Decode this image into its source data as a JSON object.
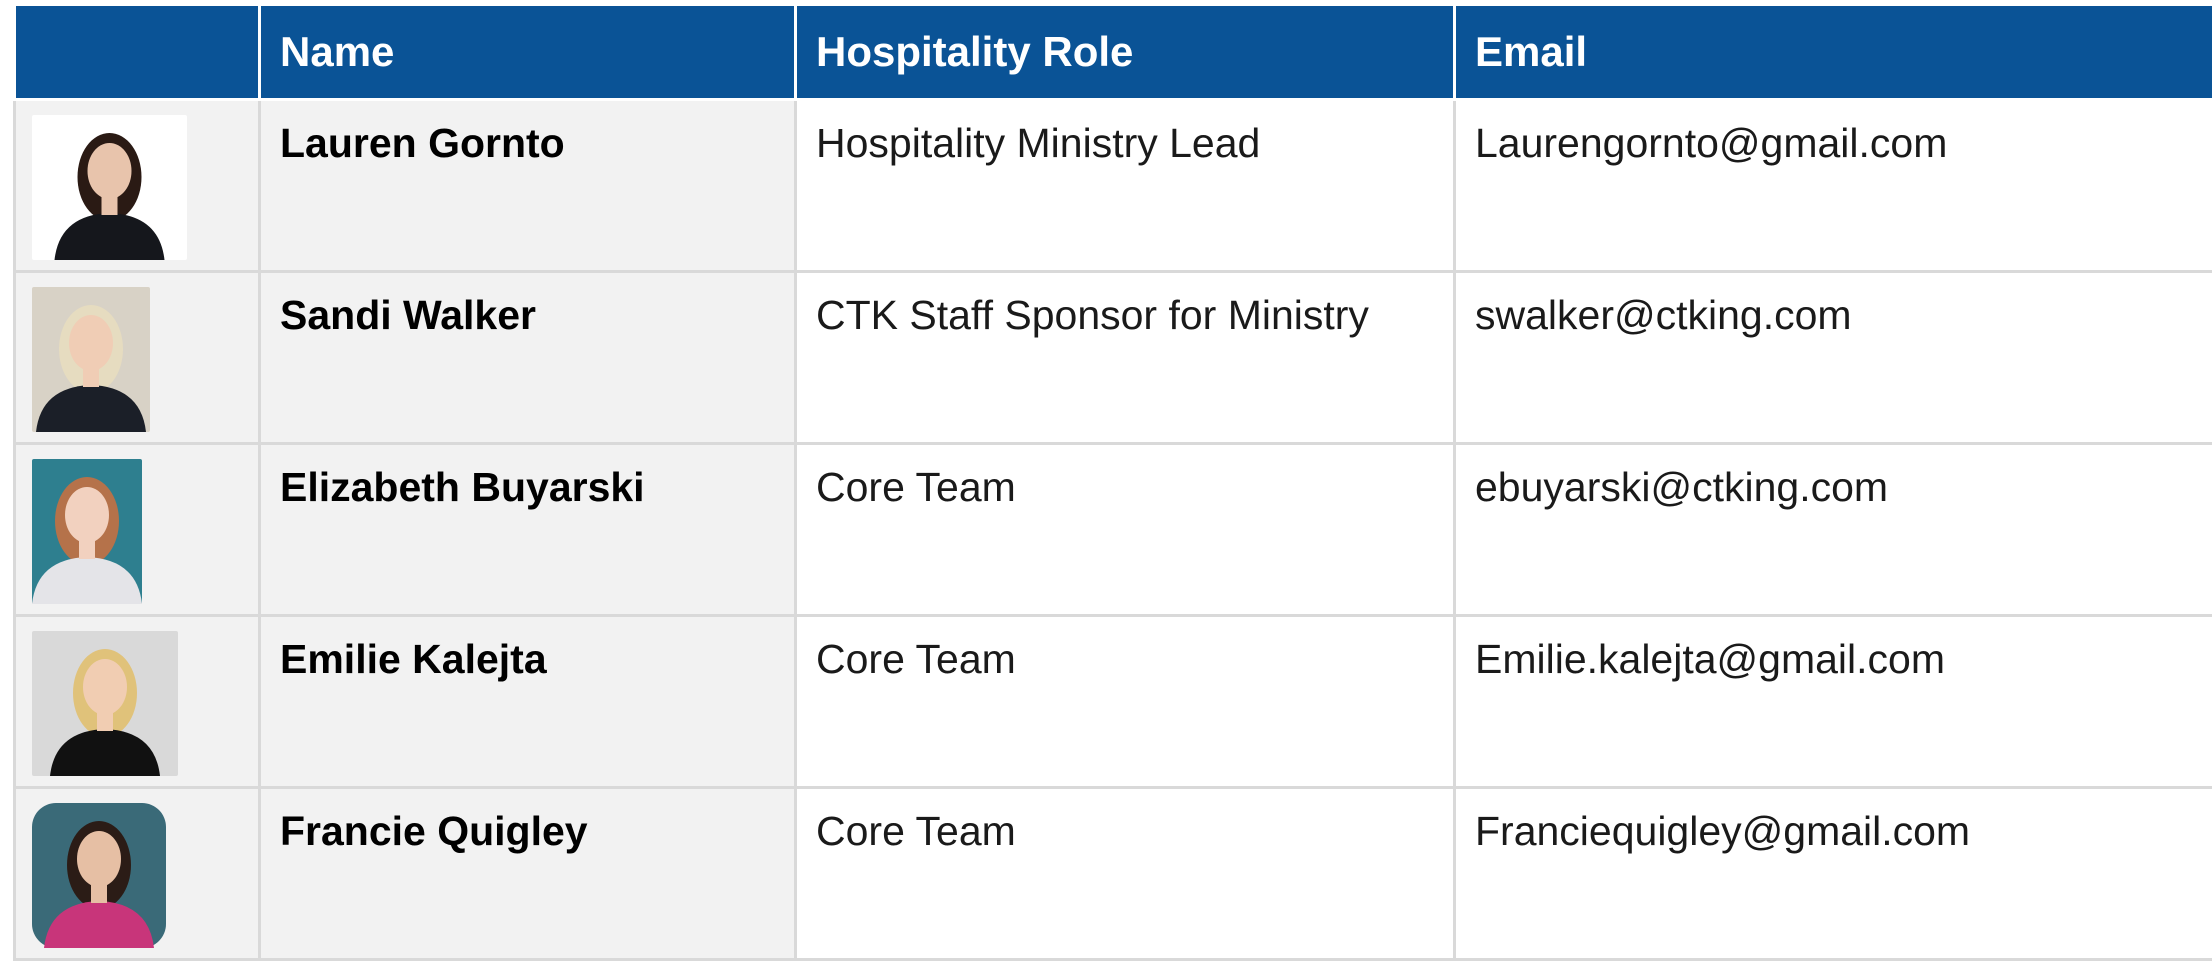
{
  "table": {
    "columns": [
      "Name",
      "Hospitality Role",
      "Email"
    ],
    "rows": [
      [
        "Lauren Gornto",
        "Hospitality Ministry Lead",
        "Laurengornto@gmail.com"
      ],
      [
        "Sandi Walker",
        "CTK Staff Sponsor for Ministry",
        "swalker@ctking.com"
      ],
      [
        "Elizabeth Buyarski",
        "Core Team",
        "ebuyarski@ctking.com"
      ],
      [
        "Emilie Kalejta",
        "Core Team",
        "Emilie.kalejta@gmail.com"
      ],
      [
        "Francie Quigley",
        "Core Team",
        "Franciequigley@gmail.com"
      ]
    ]
  }
}
